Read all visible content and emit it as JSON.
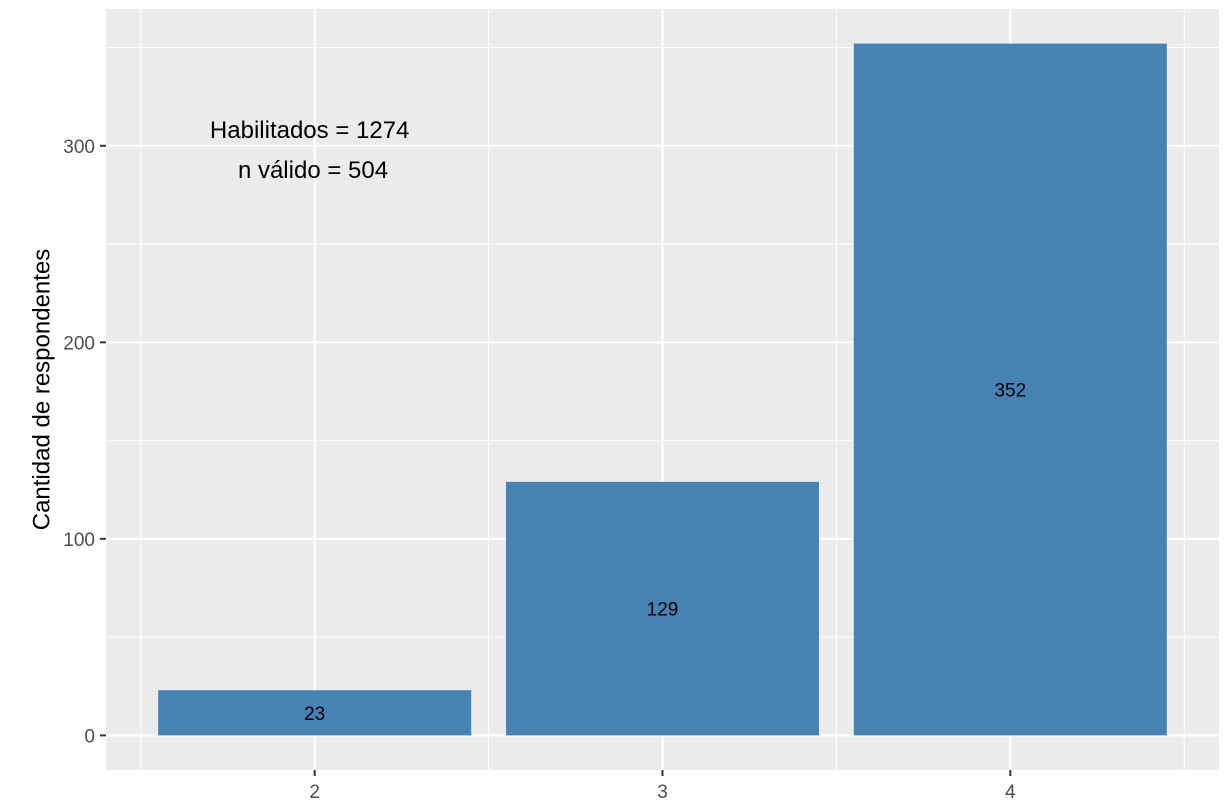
{
  "chart_data": {
    "type": "bar",
    "categories": [
      "2",
      "3",
      "4"
    ],
    "values": [
      23,
      129,
      352
    ],
    "data_labels": [
      "23",
      "129",
      "352"
    ],
    "xlabel": "",
    "ylabel": "Cantidad de respondentes",
    "ylim": [
      0,
      370
    ],
    "yticks": [
      0,
      100,
      200,
      300
    ],
    "ytick_labels": [
      "0",
      "100",
      "200",
      "300"
    ],
    "grid": true,
    "annotation": [
      "Habilitados =  1274",
      "n válido = 504"
    ],
    "colors": {
      "bar": "#4682B4",
      "panel": "#EBEBEB",
      "grid_major": "#FFFFFF",
      "grid_minor": "#F5F5F5"
    }
  }
}
